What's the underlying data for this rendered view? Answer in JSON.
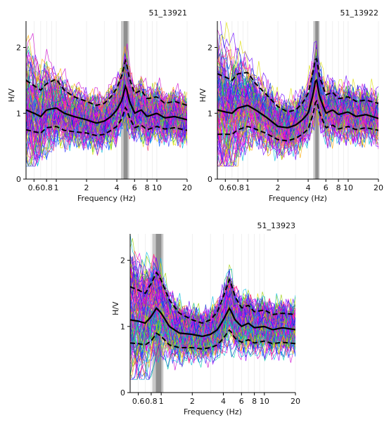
{
  "chart_data": [
    {
      "type": "line",
      "title": "51_13921",
      "xlabel": "Frequency (Hz)",
      "ylabel": "H/V",
      "xscale": "log",
      "xlim": [
        0.5,
        20
      ],
      "ylim": [
        0,
        2.4
      ],
      "xticks": [
        {
          "value": 0.6,
          "label": "0.6"
        },
        {
          "value": 0.8,
          "label": "0.8"
        },
        {
          "value": 1,
          "label": "1"
        },
        {
          "value": 2,
          "label": "2"
        },
        {
          "value": 4,
          "label": "4"
        },
        {
          "value": 6,
          "label": "6"
        },
        {
          "value": 8,
          "label": "8"
        },
        {
          "value": 10,
          "label": "10"
        },
        {
          "value": 20,
          "label": "20"
        }
      ],
      "yticks": [
        {
          "value": 0,
          "label": "0"
        },
        {
          "value": 1,
          "label": "1"
        },
        {
          "value": 2,
          "label": "2"
        }
      ],
      "grid": true,
      "peak_band": [
        4.4,
        5.3
      ],
      "window_curve_count": 120,
      "series": [
        {
          "role": "mean",
          "style": "solid",
          "x": [
            0.5,
            0.6,
            0.7,
            0.8,
            1.0,
            1.2,
            1.5,
            2.0,
            2.5,
            3.0,
            3.5,
            4.0,
            4.5,
            4.9,
            5.3,
            6.0,
            7.0,
            8.0,
            10.0,
            12.0,
            15.0,
            20.0
          ],
          "y": [
            1.05,
            1.0,
            0.95,
            1.05,
            1.08,
            1.0,
            0.95,
            0.9,
            0.85,
            0.88,
            0.95,
            1.05,
            1.2,
            1.43,
            1.2,
            1.0,
            1.05,
            0.95,
            1.0,
            0.93,
            0.95,
            0.9
          ]
        },
        {
          "role": "mean_plus_std",
          "style": "dashed",
          "x": [
            0.5,
            0.6,
            0.7,
            0.8,
            1.0,
            1.2,
            1.5,
            2.0,
            2.5,
            3.0,
            3.5,
            4.0,
            4.5,
            4.9,
            5.3,
            6.0,
            7.0,
            8.0,
            10.0,
            12.0,
            15.0,
            20.0
          ],
          "y": [
            1.5,
            1.42,
            1.35,
            1.45,
            1.52,
            1.35,
            1.25,
            1.18,
            1.12,
            1.15,
            1.25,
            1.38,
            1.58,
            1.82,
            1.55,
            1.3,
            1.35,
            1.22,
            1.25,
            1.15,
            1.18,
            1.12
          ]
        },
        {
          "role": "mean_minus_std",
          "style": "dashed",
          "x": [
            0.5,
            0.6,
            0.7,
            0.8,
            1.0,
            1.2,
            1.5,
            2.0,
            2.5,
            3.0,
            3.5,
            4.0,
            4.5,
            4.9,
            5.3,
            6.0,
            7.0,
            8.0,
            10.0,
            12.0,
            15.0,
            20.0
          ],
          "y": [
            0.75,
            0.72,
            0.7,
            0.78,
            0.8,
            0.74,
            0.72,
            0.7,
            0.66,
            0.68,
            0.74,
            0.8,
            0.92,
            1.1,
            0.95,
            0.78,
            0.82,
            0.75,
            0.8,
            0.76,
            0.78,
            0.74
          ]
        }
      ]
    },
    {
      "type": "line",
      "title": "51_13922",
      "xlabel": "Frequency (Hz)",
      "ylabel": "H/V",
      "xscale": "log",
      "xlim": [
        0.5,
        20
      ],
      "ylim": [
        0,
        2.4
      ],
      "xticks": [
        {
          "value": 0.6,
          "label": "0.6"
        },
        {
          "value": 0.8,
          "label": "0.8"
        },
        {
          "value": 1,
          "label": "1"
        },
        {
          "value": 2,
          "label": "2"
        },
        {
          "value": 4,
          "label": "4"
        },
        {
          "value": 6,
          "label": "6"
        },
        {
          "value": 8,
          "label": "8"
        },
        {
          "value": 10,
          "label": "10"
        },
        {
          "value": 20,
          "label": "20"
        }
      ],
      "yticks": [
        {
          "value": 0,
          "label": "0"
        },
        {
          "value": 1,
          "label": "1"
        },
        {
          "value": 2,
          "label": "2"
        }
      ],
      "grid": true,
      "peak_band": [
        4.5,
        5.2
      ],
      "window_curve_count": 120,
      "series": [
        {
          "role": "mean",
          "style": "solid",
          "x": [
            0.5,
            0.6,
            0.7,
            0.8,
            1.0,
            1.2,
            1.5,
            2.0,
            2.5,
            3.0,
            3.5,
            4.0,
            4.5,
            4.8,
            5.2,
            6.0,
            7.0,
            8.0,
            10.0,
            12.0,
            15.0,
            20.0
          ],
          "y": [
            1.05,
            1.02,
            1.0,
            1.08,
            1.12,
            1.05,
            0.95,
            0.8,
            0.78,
            0.82,
            0.9,
            1.0,
            1.3,
            1.55,
            1.25,
            1.0,
            1.05,
            0.98,
            1.02,
            0.95,
            0.98,
            0.92
          ]
        },
        {
          "role": "mean_plus_std",
          "style": "dashed",
          "x": [
            0.5,
            0.6,
            0.7,
            0.8,
            1.0,
            1.2,
            1.5,
            2.0,
            2.5,
            3.0,
            3.5,
            4.0,
            4.5,
            4.8,
            5.2,
            6.0,
            7.0,
            8.0,
            10.0,
            12.0,
            15.0,
            20.0
          ],
          "y": [
            1.6,
            1.55,
            1.5,
            1.6,
            1.62,
            1.45,
            1.3,
            1.1,
            1.02,
            1.05,
            1.15,
            1.3,
            1.65,
            1.88,
            1.55,
            1.28,
            1.32,
            1.22,
            1.25,
            1.18,
            1.2,
            1.15
          ]
        },
        {
          "role": "mean_minus_std",
          "style": "dashed",
          "x": [
            0.5,
            0.6,
            0.7,
            0.8,
            1.0,
            1.2,
            1.5,
            2.0,
            2.5,
            3.0,
            3.5,
            4.0,
            4.5,
            4.8,
            5.2,
            6.0,
            7.0,
            8.0,
            10.0,
            12.0,
            15.0,
            20.0
          ],
          "y": [
            0.68,
            0.68,
            0.68,
            0.75,
            0.8,
            0.76,
            0.7,
            0.6,
            0.58,
            0.62,
            0.68,
            0.76,
            1.0,
            1.22,
            1.0,
            0.78,
            0.82,
            0.76,
            0.8,
            0.75,
            0.78,
            0.74
          ]
        }
      ]
    },
    {
      "type": "line",
      "title": "51_13923",
      "xlabel": "Frequency (Hz)",
      "ylabel": "H/V",
      "xscale": "log",
      "xlim": [
        0.5,
        20
      ],
      "ylim": [
        0,
        2.4
      ],
      "xticks": [
        {
          "value": 0.6,
          "label": "0.6"
        },
        {
          "value": 0.8,
          "label": "0.8"
        },
        {
          "value": 1,
          "label": "1"
        },
        {
          "value": 2,
          "label": "2"
        },
        {
          "value": 4,
          "label": "4"
        },
        {
          "value": 6,
          "label": "6"
        },
        {
          "value": 8,
          "label": "8"
        },
        {
          "value": 10,
          "label": "10"
        },
        {
          "value": 20,
          "label": "20"
        }
      ],
      "yticks": [
        {
          "value": 0,
          "label": "0"
        },
        {
          "value": 1,
          "label": "1"
        },
        {
          "value": 2,
          "label": "2"
        }
      ],
      "grid": true,
      "peak_band": [
        0.82,
        1.05
      ],
      "window_curve_count": 140,
      "series": [
        {
          "role": "mean",
          "style": "solid",
          "x": [
            0.5,
            0.6,
            0.7,
            0.8,
            0.9,
            1.0,
            1.2,
            1.5,
            2.0,
            2.5,
            3.0,
            3.5,
            4.0,
            4.6,
            5.2,
            6.0,
            7.0,
            8.0,
            10.0,
            12.0,
            15.0,
            20.0
          ],
          "y": [
            1.1,
            1.08,
            1.05,
            1.15,
            1.28,
            1.2,
            1.0,
            0.9,
            0.88,
            0.85,
            0.88,
            0.95,
            1.1,
            1.28,
            1.1,
            1.0,
            1.05,
            0.98,
            1.0,
            0.95,
            0.98,
            0.95
          ]
        },
        {
          "role": "mean_plus_std",
          "style": "dashed",
          "x": [
            0.5,
            0.6,
            0.7,
            0.8,
            0.9,
            1.0,
            1.2,
            1.5,
            2.0,
            2.5,
            3.0,
            3.5,
            4.0,
            4.6,
            5.2,
            6.0,
            7.0,
            8.0,
            10.0,
            12.0,
            15.0,
            20.0
          ],
          "y": [
            1.6,
            1.55,
            1.5,
            1.65,
            1.82,
            1.7,
            1.4,
            1.2,
            1.1,
            1.05,
            1.1,
            1.22,
            1.45,
            1.72,
            1.45,
            1.28,
            1.32,
            1.22,
            1.25,
            1.18,
            1.2,
            1.18
          ]
        },
        {
          "role": "mean_minus_std",
          "style": "dashed",
          "x": [
            0.5,
            0.6,
            0.7,
            0.8,
            0.9,
            1.0,
            1.2,
            1.5,
            2.0,
            2.5,
            3.0,
            3.5,
            4.0,
            4.6,
            5.2,
            6.0,
            7.0,
            8.0,
            10.0,
            12.0,
            15.0,
            20.0
          ],
          "y": [
            0.75,
            0.74,
            0.72,
            0.78,
            0.9,
            0.85,
            0.72,
            0.68,
            0.68,
            0.66,
            0.68,
            0.72,
            0.82,
            0.95,
            0.82,
            0.76,
            0.8,
            0.75,
            0.78,
            0.74,
            0.76,
            0.74
          ]
        }
      ]
    }
  ],
  "colors": {
    "band_light": "#c9c9c9",
    "band_dark": "#8f8f8f",
    "grid": "#e6e6e6",
    "axis": "#000000",
    "mean": "#000000",
    "window_palette": [
      "#ff00ff",
      "#e600e6",
      "#cc00cc",
      "#ff33cc",
      "#9900ff",
      "#6600ff",
      "#3333ff",
      "#0033cc",
      "#0066ff",
      "#00bbdd",
      "#00ccaa",
      "#33cc33",
      "#99cc00",
      "#dddd00",
      "#ffaa00",
      "#ff3366"
    ]
  }
}
